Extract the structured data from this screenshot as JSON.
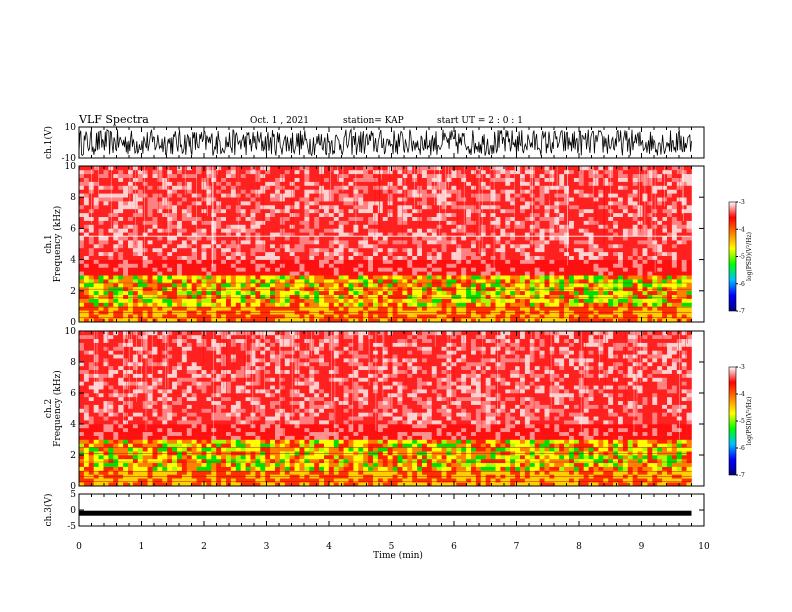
{
  "chart_data": {
    "type": "heatmap",
    "title": "VLF Spectra",
    "date": "Oct. 1 , 2021",
    "station": "station= KAP",
    "start_time": "start UT =  2 : 0 : 1",
    "xlabel": "Time (min)",
    "xlim": [
      0,
      10
    ],
    "x_ticks": [
      "0",
      "1",
      "2",
      "3",
      "4",
      "5",
      "6",
      "7",
      "8",
      "9",
      "10"
    ],
    "panels": [
      {
        "name": "ch1-waveform",
        "type": "line",
        "ylabel": "ch.1(V)",
        "ylim": [
          -10,
          10
        ],
        "y_ticks": [
          "10",
          "-10"
        ],
        "data_end_min": 9.8
      },
      {
        "name": "ch1-spectrogram",
        "type": "heatmap",
        "ylabel": "ch.1\nFrequency (kHz)",
        "ylim": [
          0,
          10
        ],
        "y_ticks": [
          "10",
          "8",
          "6",
          "4",
          "2",
          "0"
        ],
        "data_end_min": 9.8,
        "colorbar": {
          "label": "log(PSD)(V²/Hz)",
          "range": [
            -7,
            -3
          ],
          "ticks": [
            "-3",
            "-4",
            "-5",
            "-6",
            "-7"
          ]
        }
      },
      {
        "name": "ch2-spectrogram",
        "type": "heatmap",
        "ylabel": "ch.2\nFrequency (kHz)",
        "ylim": [
          0,
          10
        ],
        "y_ticks": [
          "10",
          "8",
          "6",
          "4",
          "2",
          "0"
        ],
        "data_end_min": 9.8,
        "colorbar": {
          "label": "log(PSD)(V²/Hz)",
          "range": [
            -7,
            -3
          ],
          "ticks": [
            "-3",
            "-4",
            "-5",
            "-6",
            "-7"
          ]
        }
      },
      {
        "name": "ch3-waveform",
        "type": "line",
        "ylabel": "ch.3(V)",
        "ylim": [
          -5,
          5
        ],
        "y_ticks": [
          "5",
          "0",
          "-5"
        ],
        "constant_level": -1,
        "data_end_min": 9.8
      }
    ],
    "colors": {
      "background": "#ffffff",
      "line": "#000000",
      "colorscale": [
        "#000080",
        "#0000ff",
        "#00c0ff",
        "#00ff00",
        "#ffff00",
        "#ff8000",
        "#ff0000",
        "#ffffff"
      ]
    }
  }
}
